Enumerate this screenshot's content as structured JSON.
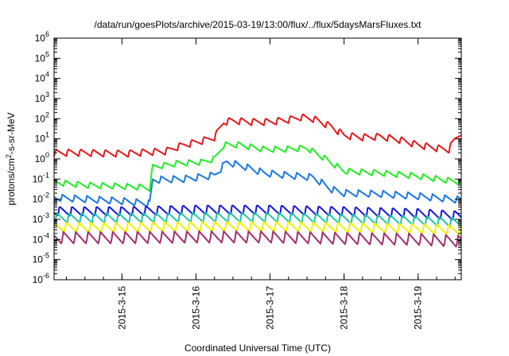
{
  "chart_data": {
    "type": "line",
    "title": "/data/run/goesPlots/archive/2015-03-19/13:00/flux/../flux/5daysMarsFluxes.txt",
    "xlabel": "Coordinated Universal Time (UTC)",
    "ylabel": {
      "prefix": "protons/cm",
      "sup": "2",
      "suffix": "-s-sr-MeV"
    },
    "y_scale": "log",
    "ylim_exp": [
      -6,
      6
    ],
    "y_ticks": [
      {
        "base": "10",
        "exp": "-6"
      },
      {
        "base": "10",
        "exp": "-5"
      },
      {
        "base": "10",
        "exp": "-4"
      },
      {
        "base": "10",
        "exp": "-3"
      },
      {
        "base": "10",
        "exp": "-2"
      },
      {
        "base": "10",
        "exp": "-1"
      },
      {
        "base": "10",
        "exp": "0"
      },
      {
        "base": "10",
        "exp": "1"
      },
      {
        "base": "10",
        "exp": "2"
      },
      {
        "base": "10",
        "exp": "3"
      },
      {
        "base": "10",
        "exp": "4"
      },
      {
        "base": "10",
        "exp": "5"
      },
      {
        "base": "10",
        "exp": "6"
      }
    ],
    "xlim": [
      "2015-03-14T02:00",
      "2015-03-19T14:00"
    ],
    "x_ticks": [
      {
        "label": "2015-3-15",
        "date": "2015-03-15T00:00"
      },
      {
        "label": "2015-3-16",
        "date": "2015-03-16T00:00"
      },
      {
        "label": "2015-3-17",
        "date": "2015-03-17T00:00"
      },
      {
        "label": "2015-3-18",
        "date": "2015-03-18T00:00"
      },
      {
        "label": "2015-3-19",
        "date": "2015-03-19T00:00"
      }
    ],
    "series": [
      {
        "color": "#e31a1c",
        "sawtooth_amplitude_decades": 0.35,
        "points": [
          [
            "2015-03-14T02:00",
            2.0
          ],
          [
            "2015-03-14T08:00",
            2.1
          ],
          [
            "2015-03-14T14:00",
            2.0
          ],
          [
            "2015-03-14T20:00",
            1.9
          ],
          [
            "2015-03-15T02:00",
            1.9
          ],
          [
            "2015-03-15T08:00",
            2.2
          ],
          [
            "2015-03-15T14:00",
            2.4
          ],
          [
            "2015-03-15T20:00",
            5.0
          ],
          [
            "2015-03-16T02:00",
            8.0
          ],
          [
            "2015-03-16T06:00",
            12.0
          ],
          [
            "2015-03-16T09:00",
            70.0
          ],
          [
            "2015-03-16T12:00",
            80.0
          ],
          [
            "2015-03-16T18:00",
            70.0
          ],
          [
            "2015-03-17T00:00",
            70.0
          ],
          [
            "2015-03-17T06:00",
            90.0
          ],
          [
            "2015-03-17T10:00",
            120.0
          ],
          [
            "2015-03-17T14:00",
            100.0
          ],
          [
            "2015-03-17T20:00",
            40.0
          ],
          [
            "2015-03-18T00:00",
            15.0
          ],
          [
            "2015-03-18T06:00",
            12.0
          ],
          [
            "2015-03-18T12:00",
            13.0
          ],
          [
            "2015-03-18T18:00",
            9.0
          ],
          [
            "2015-03-19T00:00",
            5.0
          ],
          [
            "2015-03-19T06:00",
            3.5
          ],
          [
            "2015-03-19T10:00",
            3.0
          ],
          [
            "2015-03-19T12:00",
            10.0
          ],
          [
            "2015-03-19T14:00",
            22.0
          ]
        ]
      },
      {
        "color": "#22ee22",
        "sawtooth_amplitude_decades": 0.3,
        "points": [
          [
            "2015-03-14T02:00",
            0.07
          ],
          [
            "2015-03-14T12:00",
            0.05
          ],
          [
            "2015-03-14T22:00",
            0.045
          ],
          [
            "2015-03-15T06:00",
            0.04
          ],
          [
            "2015-03-15T09:00",
            0.035
          ],
          [
            "2015-03-15T10:00",
            0.4
          ],
          [
            "2015-03-15T18:00",
            0.6
          ],
          [
            "2015-03-16T02:00",
            0.7
          ],
          [
            "2015-03-16T06:00",
            1.0
          ],
          [
            "2015-03-16T09:00",
            5.0
          ],
          [
            "2015-03-16T14:00",
            5.0
          ],
          [
            "2015-03-16T22:00",
            3.0
          ],
          [
            "2015-03-17T04:00",
            3.0
          ],
          [
            "2015-03-17T12:00",
            3.5
          ],
          [
            "2015-03-17T18:00",
            1.0
          ],
          [
            "2015-03-18T00:00",
            0.25
          ],
          [
            "2015-03-18T12:00",
            0.2
          ],
          [
            "2015-03-19T00:00",
            0.14
          ],
          [
            "2015-03-19T14:00",
            0.07
          ]
        ]
      },
      {
        "color": "#1a78e0",
        "sawtooth_amplitude_decades": 0.35,
        "points": [
          [
            "2015-03-14T02:00",
            0.012
          ],
          [
            "2015-03-14T12:00",
            0.01
          ],
          [
            "2015-03-15T00:00",
            0.008
          ],
          [
            "2015-03-15T09:00",
            0.006
          ],
          [
            "2015-03-15T10:00",
            0.09
          ],
          [
            "2015-03-15T20:00",
            0.1
          ],
          [
            "2015-03-16T06:00",
            0.15
          ],
          [
            "2015-03-16T10:00",
            0.7
          ],
          [
            "2015-03-16T16:00",
            0.4
          ],
          [
            "2015-03-16T22:00",
            0.2
          ],
          [
            "2015-03-17T06:00",
            0.15
          ],
          [
            "2015-03-17T14:00",
            0.12
          ],
          [
            "2015-03-17T20:00",
            0.03
          ],
          [
            "2015-03-18T00:00",
            0.02
          ],
          [
            "2015-03-18T12:00",
            0.018
          ],
          [
            "2015-03-19T00:00",
            0.014
          ],
          [
            "2015-03-19T14:00",
            0.009
          ]
        ]
      },
      {
        "color": "#1515d8",
        "sawtooth_amplitude_decades": 0.5,
        "points": [
          [
            "2015-03-14T02:00",
            0.0025
          ],
          [
            "2015-03-15T00:00",
            0.0025
          ],
          [
            "2015-03-16T00:00",
            0.003
          ],
          [
            "2015-03-17T00:00",
            0.003
          ],
          [
            "2015-03-18T00:00",
            0.0025
          ],
          [
            "2015-03-19T00:00",
            0.002
          ],
          [
            "2015-03-19T14:00",
            0.0015
          ]
        ]
      },
      {
        "color": "#20c8a8",
        "sawtooth_amplitude_decades": 0.5,
        "points": [
          [
            "2015-03-14T02:00",
            0.0012
          ],
          [
            "2015-03-15T00:00",
            0.0012
          ],
          [
            "2015-03-16T00:00",
            0.0013
          ],
          [
            "2015-03-17T00:00",
            0.0013
          ],
          [
            "2015-03-18T00:00",
            0.0011
          ],
          [
            "2015-03-19T00:00",
            0.0009
          ],
          [
            "2015-03-19T14:00",
            0.0007
          ]
        ]
      },
      {
        "color": "#f2f200",
        "sawtooth_amplitude_decades": 0.5,
        "points": [
          [
            "2015-03-14T02:00",
            0.0004
          ],
          [
            "2015-03-15T00:00",
            0.0004
          ],
          [
            "2015-03-16T00:00",
            0.00045
          ],
          [
            "2015-03-17T00:00",
            0.00045
          ],
          [
            "2015-03-18T00:00",
            0.0004
          ],
          [
            "2015-03-19T00:00",
            0.00035
          ],
          [
            "2015-03-19T14:00",
            0.0003
          ]
        ]
      },
      {
        "color": "#a03070",
        "sawtooth_amplitude_decades": 0.6,
        "points": [
          [
            "2015-03-14T02:00",
            0.00012
          ],
          [
            "2015-03-15T00:00",
            0.00012
          ],
          [
            "2015-03-16T00:00",
            0.00013
          ],
          [
            "2015-03-17T00:00",
            0.00013
          ],
          [
            "2015-03-18T00:00",
            0.00011
          ],
          [
            "2015-03-19T00:00",
            0.0001
          ],
          [
            "2015-03-19T14:00",
            8e-05
          ]
        ]
      }
    ],
    "grid": false,
    "legend": "none"
  }
}
